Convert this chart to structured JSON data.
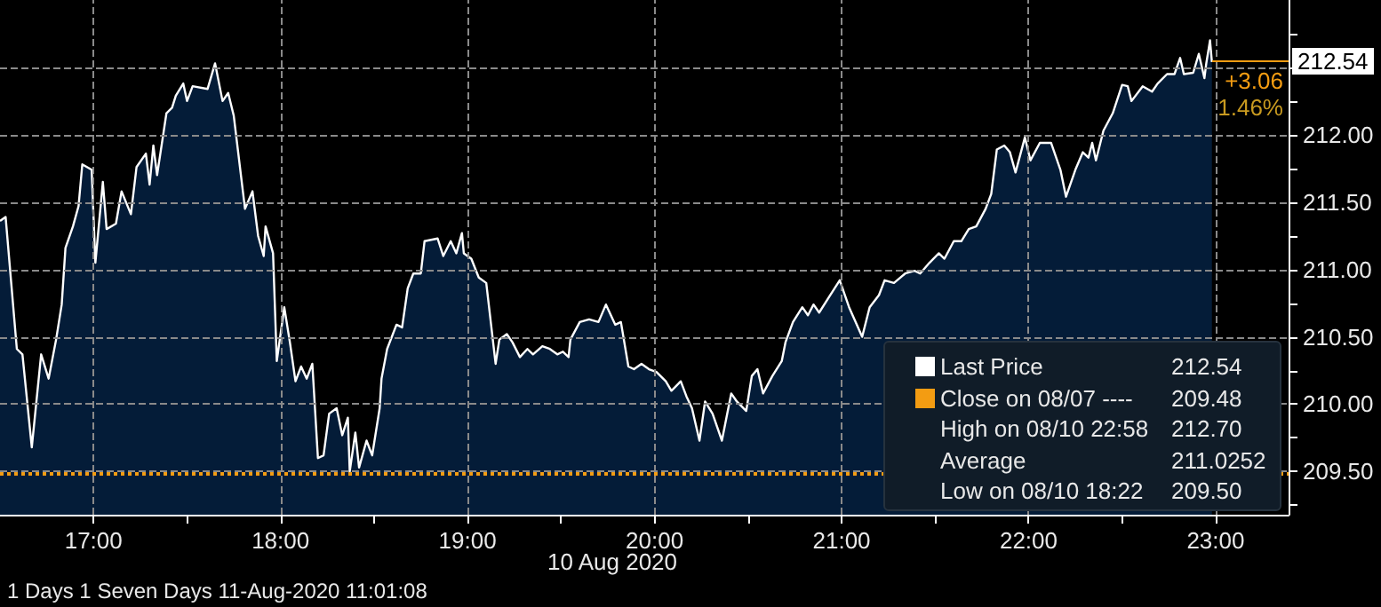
{
  "chart_data": {
    "type": "area",
    "xlabel": "10 Aug 2020",
    "x": [
      16.5,
      16.53,
      16.56,
      16.59,
      16.62,
      16.67,
      16.72,
      16.76,
      16.8,
      16.83,
      16.85,
      16.89,
      16.92,
      16.94,
      16.99,
      17.01,
      17.05,
      17.07,
      17.12,
      17.15,
      17.2,
      17.23,
      17.28,
      17.3,
      17.32,
      17.34,
      17.39,
      17.42,
      17.44,
      17.48,
      17.5,
      17.53,
      17.61,
      17.65,
      17.69,
      17.72,
      17.75,
      17.81,
      17.85,
      17.88,
      17.91,
      17.92,
      17.96,
      17.98,
      18.02,
      18.05,
      18.08,
      18.11,
      18.14,
      18.17,
      18.2,
      18.23,
      18.26,
      18.3,
      18.33,
      18.36,
      18.37,
      18.4,
      18.42,
      18.46,
      18.49,
      18.53,
      18.54,
      18.57,
      18.62,
      18.65,
      18.68,
      18.71,
      18.75,
      18.77,
      18.84,
      18.87,
      18.91,
      18.94,
      18.97,
      18.98,
      19.02,
      19.06,
      19.1,
      19.15,
      19.17,
      19.21,
      19.24,
      19.28,
      19.32,
      19.35,
      19.4,
      19.44,
      19.48,
      19.51,
      19.54,
      19.55,
      19.6,
      19.65,
      19.7,
      19.74,
      19.79,
      19.82,
      19.86,
      19.89,
      19.93,
      19.97,
      20.01,
      20.06,
      20.09,
      20.14,
      20.17,
      20.2,
      20.24,
      20.27,
      20.31,
      20.36,
      20.41,
      20.44,
      20.49,
      20.52,
      20.55,
      20.58,
      20.63,
      20.68,
      20.7,
      20.74,
      20.79,
      20.82,
      20.85,
      20.88,
      20.93,
      20.99,
      21.04,
      21.11,
      21.15,
      21.2,
      21.23,
      21.28,
      21.34,
      21.39,
      21.42,
      21.47,
      21.52,
      21.55,
      21.6,
      21.64,
      21.68,
      21.72,
      21.77,
      21.8,
      21.83,
      21.87,
      21.9,
      21.93,
      21.98,
      22.01,
      22.06,
      22.12,
      22.17,
      22.2,
      22.25,
      22.29,
      22.32,
      22.34,
      22.36,
      22.4,
      22.45,
      22.5,
      22.53,
      22.55,
      22.61,
      22.66,
      22.69,
      22.74,
      22.78,
      22.81,
      22.83,
      22.88,
      22.91,
      22.94,
      22.95,
      22.97,
      22.98
    ],
    "series": [
      {
        "name": "Last Price",
        "color": "#ffffff",
        "values": [
          211.36,
          211.39,
          210.9,
          210.41,
          210.37,
          209.68,
          210.37,
          210.19,
          210.48,
          210.74,
          211.16,
          211.32,
          211.47,
          211.78,
          211.74,
          211.05,
          211.65,
          211.3,
          211.34,
          211.58,
          211.41,
          211.76,
          211.86,
          211.63,
          211.92,
          211.7,
          212.16,
          212.2,
          212.29,
          212.38,
          212.25,
          212.36,
          212.34,
          212.53,
          212.25,
          212.31,
          212.14,
          211.45,
          211.58,
          211.25,
          211.1,
          211.32,
          211.12,
          210.32,
          210.72,
          210.46,
          210.17,
          210.28,
          210.19,
          210.3,
          209.6,
          209.62,
          209.93,
          209.97,
          209.77,
          209.9,
          209.5,
          209.79,
          209.53,
          209.73,
          209.62,
          209.97,
          210.19,
          210.41,
          210.59,
          210.57,
          210.86,
          210.97,
          210.97,
          211.21,
          211.23,
          211.1,
          211.21,
          211.12,
          211.27,
          211.12,
          211.08,
          210.94,
          210.9,
          210.3,
          210.48,
          210.52,
          210.46,
          210.35,
          210.41,
          210.37,
          210.43,
          210.41,
          210.37,
          210.39,
          210.35,
          210.48,
          210.61,
          210.63,
          210.61,
          210.74,
          210.59,
          210.61,
          210.28,
          210.26,
          210.3,
          210.26,
          210.24,
          210.17,
          210.1,
          210.17,
          210.06,
          209.97,
          209.73,
          210.02,
          209.93,
          209.73,
          210.08,
          210.02,
          209.95,
          210.21,
          210.26,
          210.08,
          210.21,
          210.32,
          210.46,
          210.61,
          210.72,
          210.66,
          210.74,
          210.68,
          210.79,
          210.92,
          210.72,
          210.5,
          210.72,
          210.81,
          210.92,
          210.9,
          210.97,
          210.99,
          210.97,
          211.05,
          211.12,
          211.08,
          211.21,
          211.21,
          211.3,
          211.32,
          211.45,
          211.56,
          211.89,
          211.92,
          211.87,
          211.72,
          211.98,
          211.81,
          211.94,
          211.94,
          211.74,
          211.54,
          211.74,
          211.87,
          211.83,
          211.94,
          211.81,
          212.03,
          212.16,
          212.37,
          212.36,
          212.25,
          212.36,
          212.32,
          212.38,
          212.45,
          212.45,
          212.57,
          212.45,
          212.46,
          212.6,
          212.42,
          212.53,
          212.7,
          212.54
        ]
      }
    ],
    "xlim": [
      16.5,
      23.39
    ],
    "xticks": [
      {
        "value": 17,
        "label": "17:00"
      },
      {
        "value": 17.5,
        "label": null
      },
      {
        "value": 18,
        "label": "18:00"
      },
      {
        "value": 18.5,
        "label": null
      },
      {
        "value": 19,
        "label": "19:00"
      },
      {
        "value": 19.5,
        "label": null
      },
      {
        "value": 20,
        "label": "20:00"
      },
      {
        "value": 20.5,
        "label": null
      },
      {
        "value": 21,
        "label": "21:00"
      },
      {
        "value": 21.5,
        "label": null
      },
      {
        "value": 22,
        "label": "22:00"
      },
      {
        "value": 22.5,
        "label": null
      },
      {
        "value": 23,
        "label": "23:00"
      }
    ],
    "ylim": [
      209.18,
      213.0
    ],
    "yticks": [
      {
        "value": 209.25,
        "label": null
      },
      {
        "value": 209.5,
        "label": "209.50"
      },
      {
        "value": 209.75,
        "label": null
      },
      {
        "value": 210,
        "label": "210.00"
      },
      {
        "value": 210.25,
        "label": null
      },
      {
        "value": 210.5,
        "label": "210.50"
      },
      {
        "value": 210.75,
        "label": null
      },
      {
        "value": 211,
        "label": "211.00"
      },
      {
        "value": 211.25,
        "label": null
      },
      {
        "value": 211.5,
        "label": "211.50"
      },
      {
        "value": 211.75,
        "label": null
      },
      {
        "value": 212,
        "label": "212.00"
      },
      {
        "value": 212.25,
        "label": null
      },
      {
        "value": 212.5,
        "label": null
      },
      {
        "value": 212.75,
        "label": null
      }
    ],
    "ref_lines": [
      {
        "axis": "y",
        "value": 209.48,
        "label": "Close on 08/07",
        "color": "#f39c12",
        "line_style": "dotted"
      }
    ],
    "annotations": [
      "212.54",
      "+3.06",
      "1.46%",
      "212.54",
      "----",
      "209.48",
      "High on 08/10 22:58",
      "212.70",
      "Average",
      "211.0252",
      "Low on 08/10 18:22",
      "209.50",
      "1 Days 1 Seven Days 11-Aug-2020 11:01:08"
    ],
    "grid": true,
    "legend": "bottom right",
    "marker": "none"
  }
}
